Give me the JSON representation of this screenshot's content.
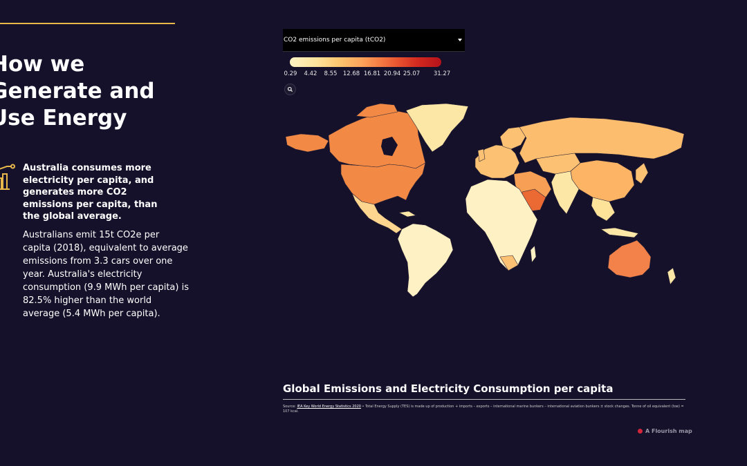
{
  "story": {
    "title": "How we\nGenerate and\nUse Energy",
    "highlight": "Australia consumes more electricity per capita, and generates more CO2 emissions per capita, than the global average.",
    "body": "Australians emit 15t CO2e per capita (2018), equivalent to average emissions from 3.3 cars over one year. Australia's electricity consumption (9.9 MWh per capita) is 82.5% higher than the world average (5.4 MWh per capita).",
    "icon": "bar-chart-icon",
    "accent_color": "#e8b84a"
  },
  "map": {
    "dropdown_value": "CO2 emissions per capita (tCO2)",
    "legend_ticks": [
      "0.29",
      "4.42",
      "8.55",
      "12.68",
      "16.81",
      "20.94",
      "25.07",
      "31.27"
    ],
    "legend_colors": [
      "#fef3c4",
      "#fde39a",
      "#fdc56f",
      "#fca25a",
      "#f57a43",
      "#e8512f",
      "#d32a20",
      "#b5121b"
    ],
    "title": "Global Emissions and Electricity Consumption per capita",
    "source_link": "IEA Key World Energy Statistics 2020",
    "source_text": " • Total Energy Supply (TES) is made up of production + imports – exports – international marine bunkers – international aviation bunkers ± stock changes. Tonne of oil equivalent (toe) = 107 kcal.",
    "credit": "A Flourish map",
    "zoom_icon": "search-icon"
  }
}
